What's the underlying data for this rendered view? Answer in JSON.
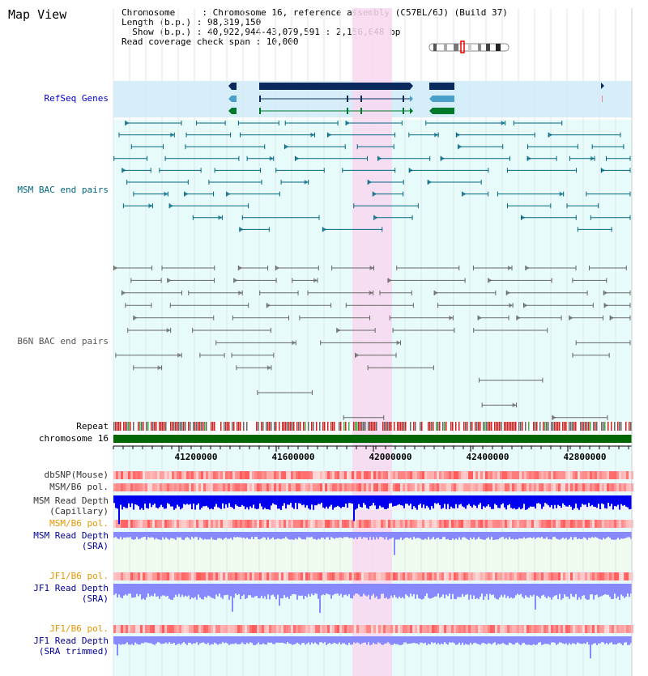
{
  "title": "Map View",
  "header": {
    "line1": "Chromosome     : Chromosome 16, reference assembly (C57BL/6J) (Build 37)",
    "line2": "Length (b.p.) : 98,319,150",
    "line3": "  Show (b.p.) : 40,922,944-43,079,591 : 2,156,648 bp",
    "line4": "Read coverage check span : 10,000"
  },
  "tracks": {
    "refseq": "RefSeq Genes",
    "msm_bac": "MSM BAC end pairs",
    "b6n_bac": "B6N BAC end pairs",
    "repeat": "Repeat",
    "chromosome": "chromosome 16",
    "dbsnp": "dbSNP(Mouse)",
    "msm_pol_cap": "MSM/B6 pol.",
    "msm_depth_cap_1": "MSM Read Depth",
    "msm_depth_cap_2": "(Capillary)",
    "msm_pol_sra": "MSM/B6 pol.",
    "msm_depth_sra_1": "MSM Read Depth",
    "msm_depth_sra_2": "(SRA)",
    "jf1_pol": "JF1/B6 pol.",
    "jf1_depth_1": "JF1 Read Depth",
    "jf1_depth_2": "(SRA)",
    "jf1_pol_t": "JF1/B6 pol.",
    "jf1_depth_t_1": "JF1 Read Depth",
    "jf1_depth_t_2": "(SRA trimmed)"
  },
  "axis": {
    "ticks": [
      "41200000",
      "41600000",
      "42000000",
      "42400000",
      "42800000"
    ]
  },
  "colors": {
    "refseq_bg": "#d6eefa",
    "track_bg": "#e8fbfb",
    "highlight": "#f8d8f0",
    "gene_dark": "#0a2a5e",
    "gene_mid": "#4aa0c8",
    "gene_green": "#007a2a",
    "msm_bac": "#006680",
    "b6n_bac": "#666666",
    "chrom_green": "#006600",
    "depth_blue": "#0000ee",
    "depth_light": "#8888ff"
  }
}
